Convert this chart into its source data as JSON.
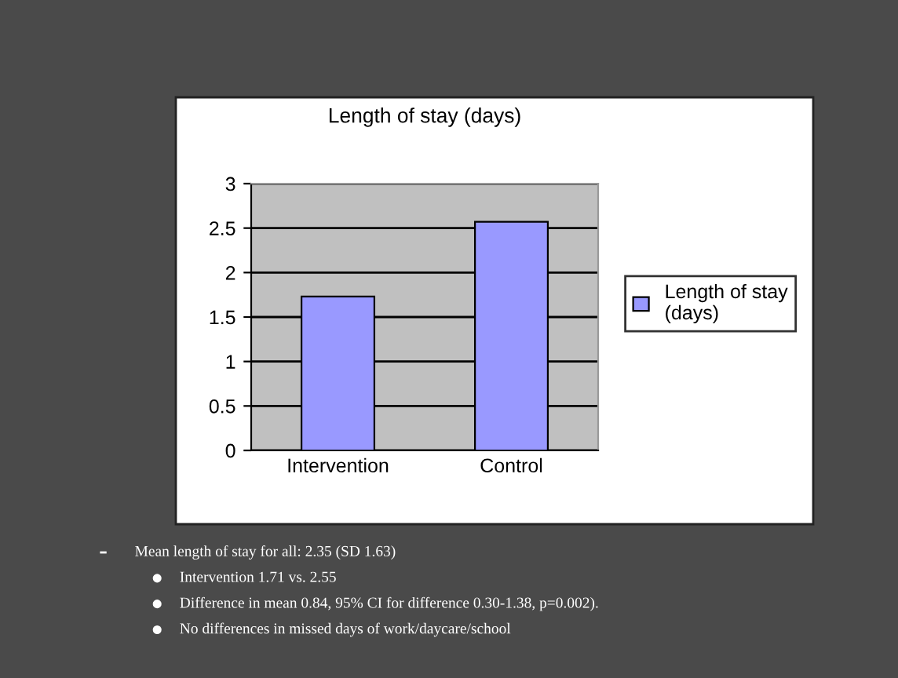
{
  "chart_data": {
    "type": "bar",
    "title": "Length of stay (days)",
    "categories": [
      "Intervention",
      "Control"
    ],
    "series": [
      {
        "name": "Length of stay (days)",
        "color": "#9999ff",
        "values": [
          1.73,
          2.57
        ]
      }
    ],
    "ylim": [
      0,
      3
    ],
    "yticks": [
      0,
      0.5,
      1,
      1.5,
      2,
      2.5,
      3
    ],
    "grid": "y",
    "legend": "right",
    "annotations": [
      "Mean length of stay for all: 2.35 (SD 1.63)",
      "Intervention 1.71 vs. 2.55",
      "Difference in mean 0.84, 95% CI for difference 0.30-1.38, p=0.002).",
      "No differences in missed days of work/daycare/school"
    ]
  }
}
